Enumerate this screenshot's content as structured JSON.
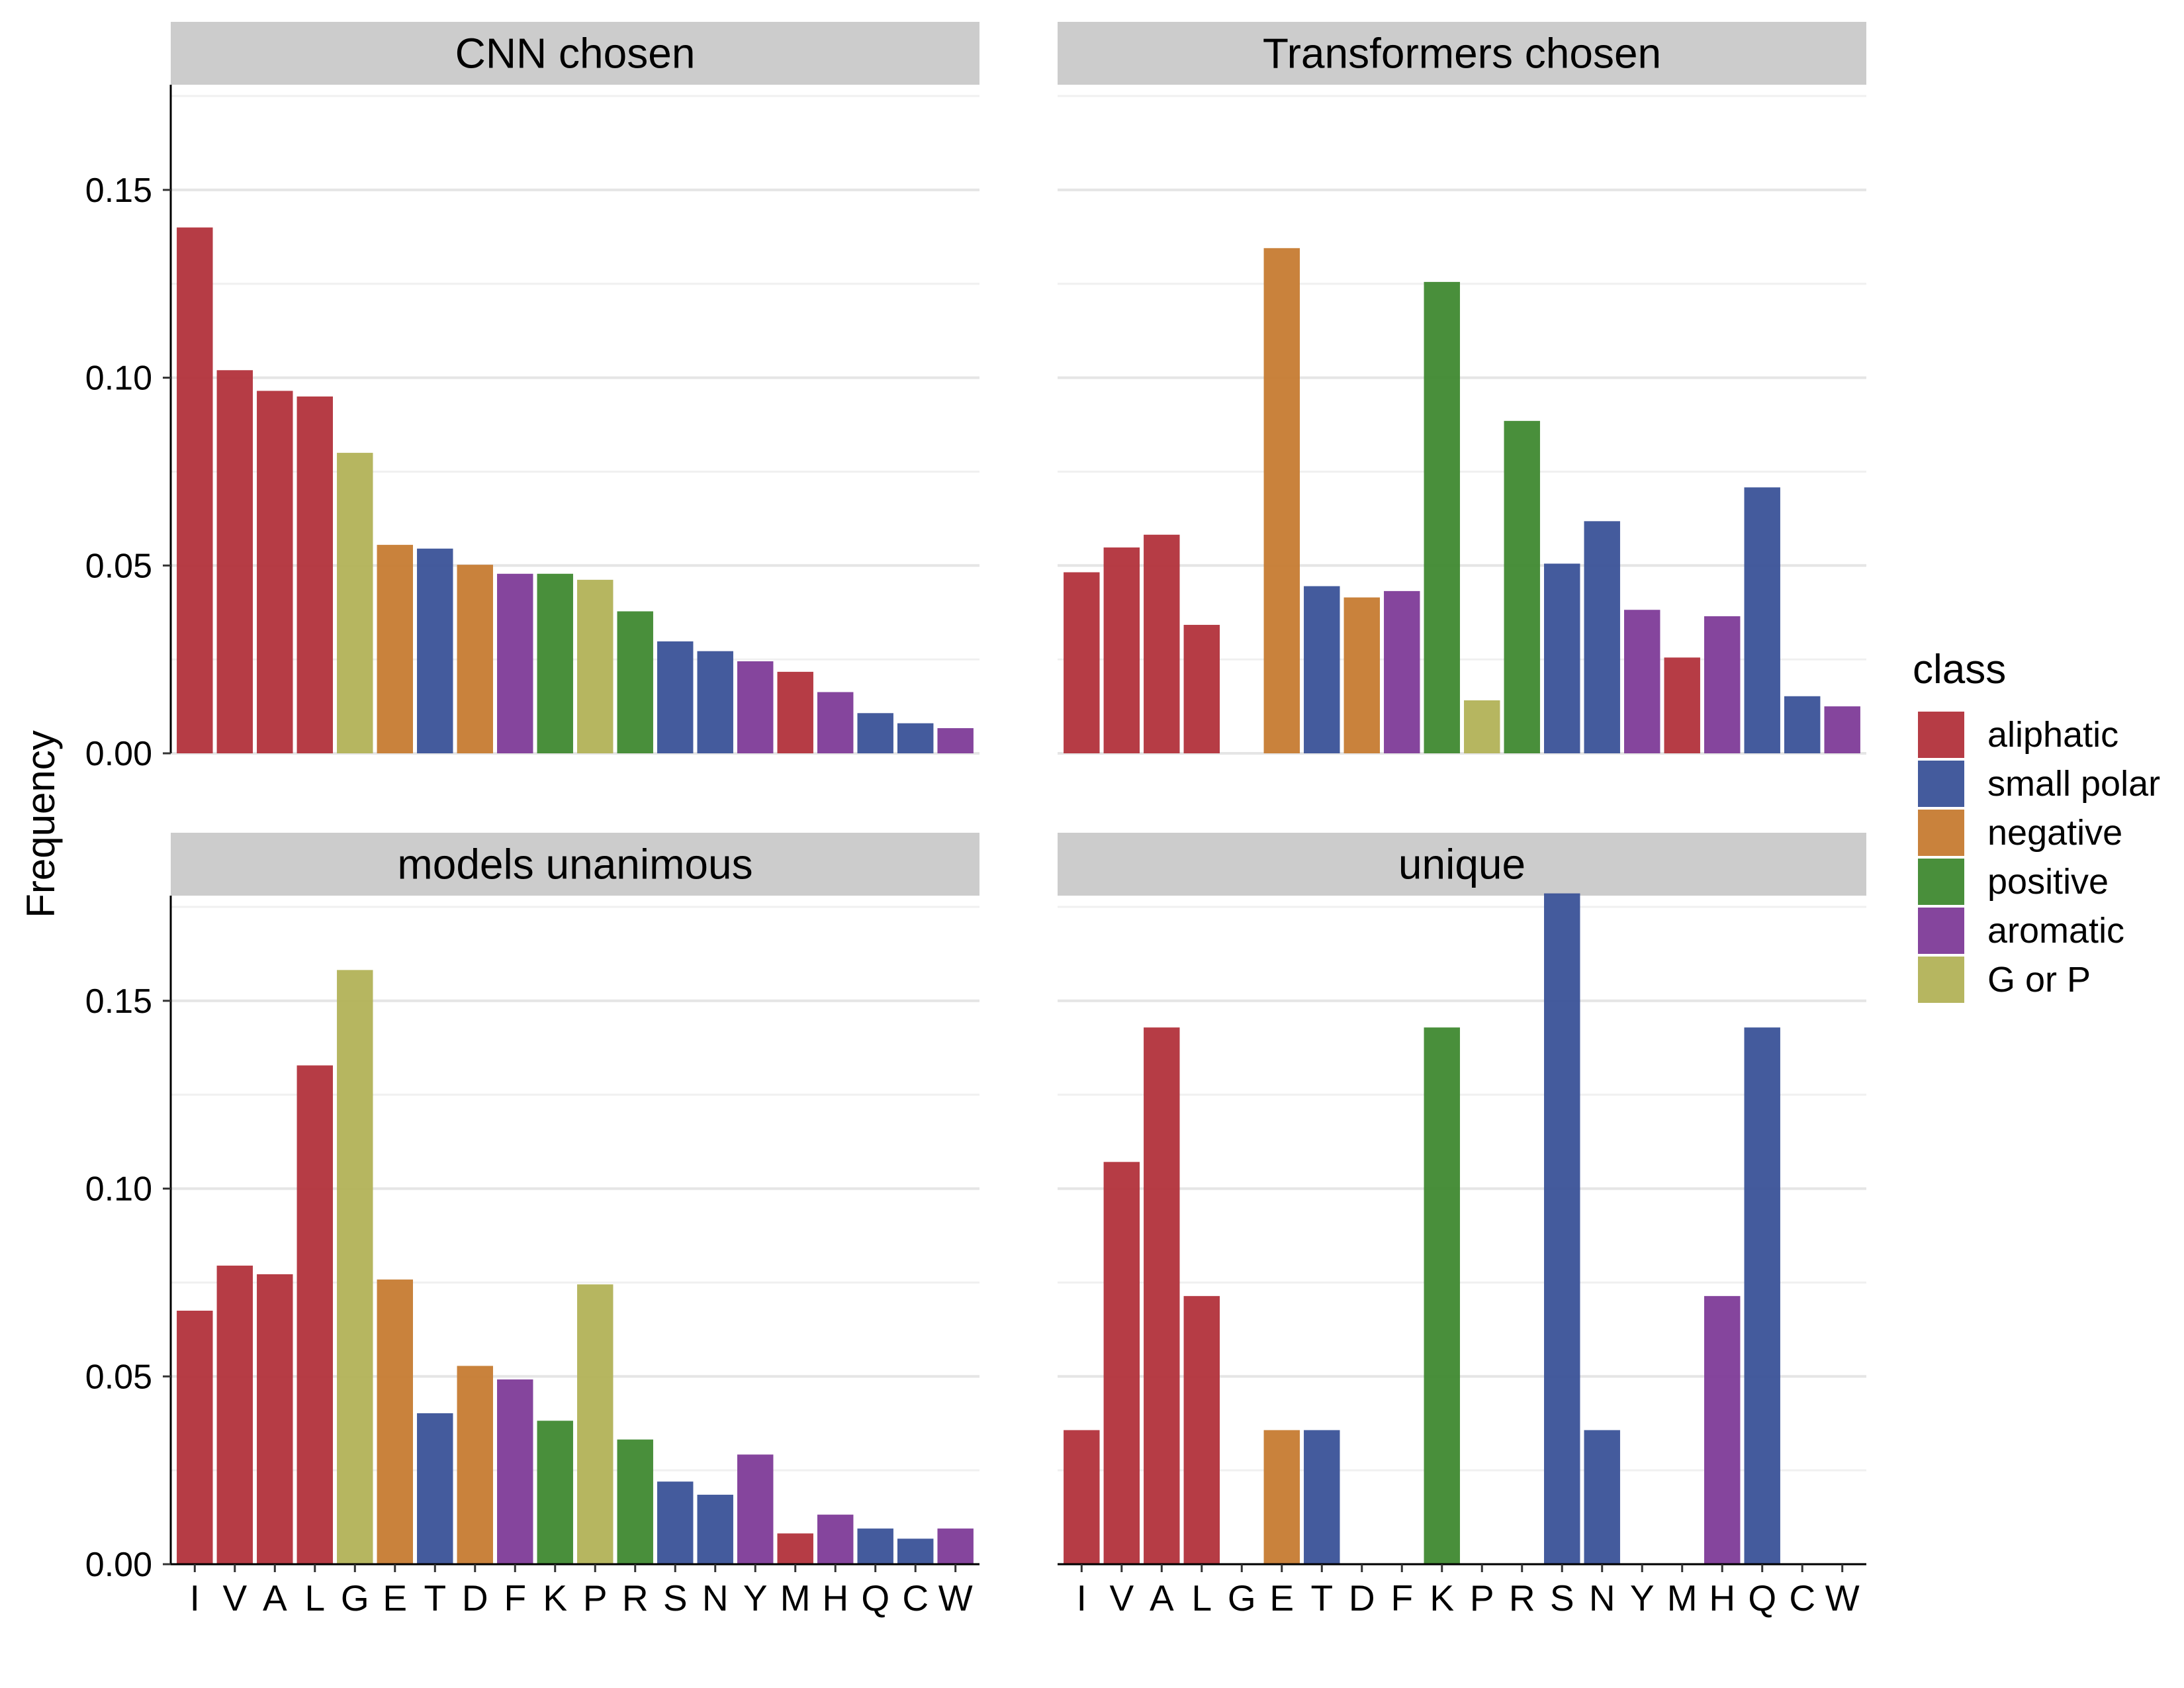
{
  "chart_data": {
    "type": "bar",
    "ylabel": "Frequency",
    "ylim": [
      0,
      0.178
    ],
    "y_ticks": [
      "0.00",
      "0.05",
      "0.10",
      "0.15"
    ],
    "y_tick_values": [
      0,
      0.05,
      0.1,
      0.15
    ],
    "grid": true,
    "categories": [
      "I",
      "V",
      "A",
      "L",
      "G",
      "E",
      "T",
      "D",
      "F",
      "K",
      "P",
      "R",
      "S",
      "N",
      "Y",
      "M",
      "H",
      "Q",
      "C",
      "W"
    ],
    "category_class": [
      "aliphatic",
      "aliphatic",
      "aliphatic",
      "aliphatic",
      "G or P",
      "negative",
      "small polar",
      "negative",
      "aromatic",
      "positive",
      "G or P",
      "positive",
      "small polar",
      "small polar",
      "aromatic",
      "aliphatic",
      "aromatic",
      "small polar",
      "small polar",
      "aromatic"
    ],
    "legend": {
      "title": "class",
      "position": "right",
      "items": [
        {
          "label": "aliphatic",
          "color": "#B2323B"
        },
        {
          "label": "small polar",
          "color": "#3A5298"
        },
        {
          "label": "negative",
          "color": "#C67B32"
        },
        {
          "label": "positive",
          "color": "#3F8930"
        },
        {
          "label": "aromatic",
          "color": "#7E3B98"
        },
        {
          "label": "G or P",
          "color": "#B2B257"
        }
      ]
    },
    "panels": [
      {
        "title": "CNN chosen",
        "values": [
          0.14,
          0.102,
          0.0965,
          0.095,
          0.08,
          0.0555,
          0.0545,
          0.0502,
          0.0478,
          0.0478,
          0.0462,
          0.0378,
          0.0298,
          0.0272,
          0.0245,
          0.0217,
          0.0163,
          0.0107,
          0.008,
          0.0067
        ]
      },
      {
        "title": "Transformers chosen",
        "values": [
          0.0482,
          0.0548,
          0.0582,
          0.0342,
          0,
          0.1345,
          0.0445,
          0.0415,
          0.0432,
          0.1255,
          0.0141,
          0.0885,
          0.0505,
          0.0618,
          0.0382,
          0.0255,
          0.0365,
          0.0708,
          0.0152,
          0.0125
        ]
      },
      {
        "title": "models unanimous",
        "values": [
          0.0675,
          0.0795,
          0.0772,
          0.1328,
          0.1582,
          0.0758,
          0.0402,
          0.0528,
          0.0492,
          0.0382,
          0.0745,
          0.0332,
          0.022,
          0.0185,
          0.0292,
          0.0082,
          0.0132,
          0.0095,
          0.0068,
          0.0095
        ]
      },
      {
        "title": "unique",
        "values": [
          0.0357,
          0.1071,
          0.1429,
          0.0714,
          0,
          0.0357,
          0.0357,
          0,
          0,
          0.1429,
          0,
          0,
          0.1786,
          0.0357,
          0,
          0,
          0.0714,
          0.1429,
          0,
          0
        ]
      }
    ]
  }
}
